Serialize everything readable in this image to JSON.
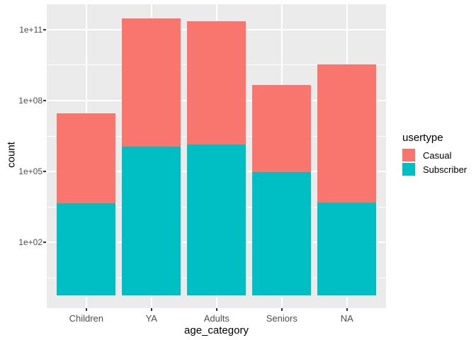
{
  "chart_data": {
    "type": "bar",
    "stacked": true,
    "title": "",
    "xlabel": "age_category",
    "ylabel": "count",
    "categories": [
      "Children",
      "YA",
      "Adults",
      "Seniors",
      "NA"
    ],
    "series": [
      {
        "name": "Subscriber",
        "color": "#00BFC4",
        "values": [
          4600,
          1100000,
          1400000,
          92000,
          4700
        ]
      },
      {
        "name": "Casual",
        "color": "#F8766D",
        "values": [
          28000000,
          300000000000,
          220000000000,
          450000000,
          3400000000
        ]
      }
    ],
    "y_scale": "log10",
    "y_ticks": [
      {
        "label": "1e+02",
        "value": 100
      },
      {
        "label": "1e+05",
        "value": 100000
      },
      {
        "label": "1e+08",
        "value": 100000000
      },
      {
        "label": "1e+11",
        "value": 100000000000
      }
    ],
    "ylim": [
      0.6,
      1200000000000
    ],
    "grid": true,
    "legend": {
      "title": "usertype",
      "position": "right",
      "items": [
        {
          "label": "Casual",
          "color": "#F8766D"
        },
        {
          "label": "Subscriber",
          "color": "#00BFC4"
        }
      ]
    }
  },
  "colors": {
    "panel_bg": "#EBEBEB",
    "gridline": "#FFFFFF",
    "tick_text": "#4D4D4D",
    "tick_mark": "#333333",
    "casual": "#F8766D",
    "subscriber": "#00BFC4"
  }
}
